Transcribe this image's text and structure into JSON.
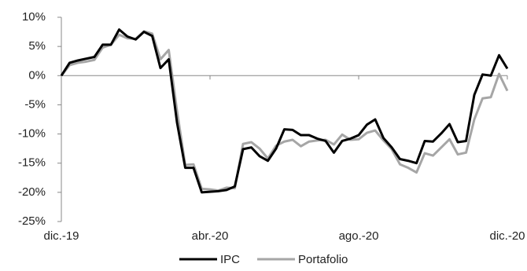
{
  "chart_data": {
    "type": "line",
    "categories": [
      "dic.-19",
      null,
      null,
      null,
      null,
      null,
      null,
      null,
      null,
      null,
      null,
      null,
      null,
      null,
      null,
      null,
      null,
      null,
      "abr.-20",
      null,
      null,
      null,
      null,
      null,
      null,
      null,
      null,
      null,
      null,
      null,
      null,
      null,
      null,
      null,
      null,
      null,
      "ago.-20",
      null,
      null,
      null,
      null,
      null,
      null,
      null,
      null,
      null,
      null,
      null,
      null,
      null,
      null,
      null,
      null,
      null,
      "dic.-20"
    ],
    "series": [
      {
        "name": "IPC",
        "color": "#000000",
        "values": [
          0,
          2.2,
          2.6,
          2.9,
          3.2,
          5.3,
          5.3,
          7.9,
          6.7,
          6.2,
          7.5,
          6.8,
          1.3,
          2.8,
          -8,
          -15.8,
          -15.8,
          -20,
          -19.9,
          -19.8,
          -19.6,
          -19,
          -12.6,
          -12.3,
          -13.8,
          -14.6,
          -12.5,
          -9.2,
          -9.3,
          -10.2,
          -10.2,
          -10.8,
          -11.2,
          -13.2,
          -11.2,
          -10.8,
          -10.2,
          -8.4,
          -7.5,
          -10.7,
          -12.3,
          -14.3,
          -14.6,
          -15.0,
          -11.2,
          -11.3,
          -9.9,
          -8.3,
          -11.4,
          -11.2,
          -3.3,
          0.2,
          0,
          3.5,
          1.2
        ]
      },
      {
        "name": "Portafolio",
        "color": "#a6a6a6",
        "values": [
          0,
          1.8,
          2.2,
          2.4,
          2.7,
          4.8,
          5.3,
          7.0,
          6.4,
          6.3,
          7.6,
          7.2,
          2.8,
          4.4,
          -6,
          -15.3,
          -15.2,
          -19.4,
          -19.5,
          -19.7,
          -19.2,
          -19.3,
          -11.7,
          -11.4,
          -12.5,
          -14.2,
          -12,
          -11.3,
          -11,
          -12.1,
          -11.3,
          -11.1,
          -11,
          -11.8,
          -10.1,
          -11.0,
          -10.9,
          -9.8,
          -9.4,
          -11.1,
          -12.6,
          -15.2,
          -15.8,
          -16.6,
          -13.3,
          -13.7,
          -12.3,
          -10.9,
          -13.5,
          -13.2,
          -7.5,
          -3.9,
          -3.7,
          0.3,
          -2.6
        ]
      }
    ],
    "ylim": [
      -25,
      10
    ],
    "yticks": [
      {
        "value": -25,
        "label": "-25%"
      },
      {
        "value": -20,
        "label": "-20%"
      },
      {
        "value": -15,
        "label": "-15%"
      },
      {
        "value": -10,
        "label": "-10%"
      },
      {
        "value": -5,
        "label": "-5%"
      },
      {
        "value": 0,
        "label": "0%"
      },
      {
        "value": 5,
        "label": "5%"
      },
      {
        "value": 10,
        "label": "10%"
      }
    ],
    "legend": "bottom"
  }
}
